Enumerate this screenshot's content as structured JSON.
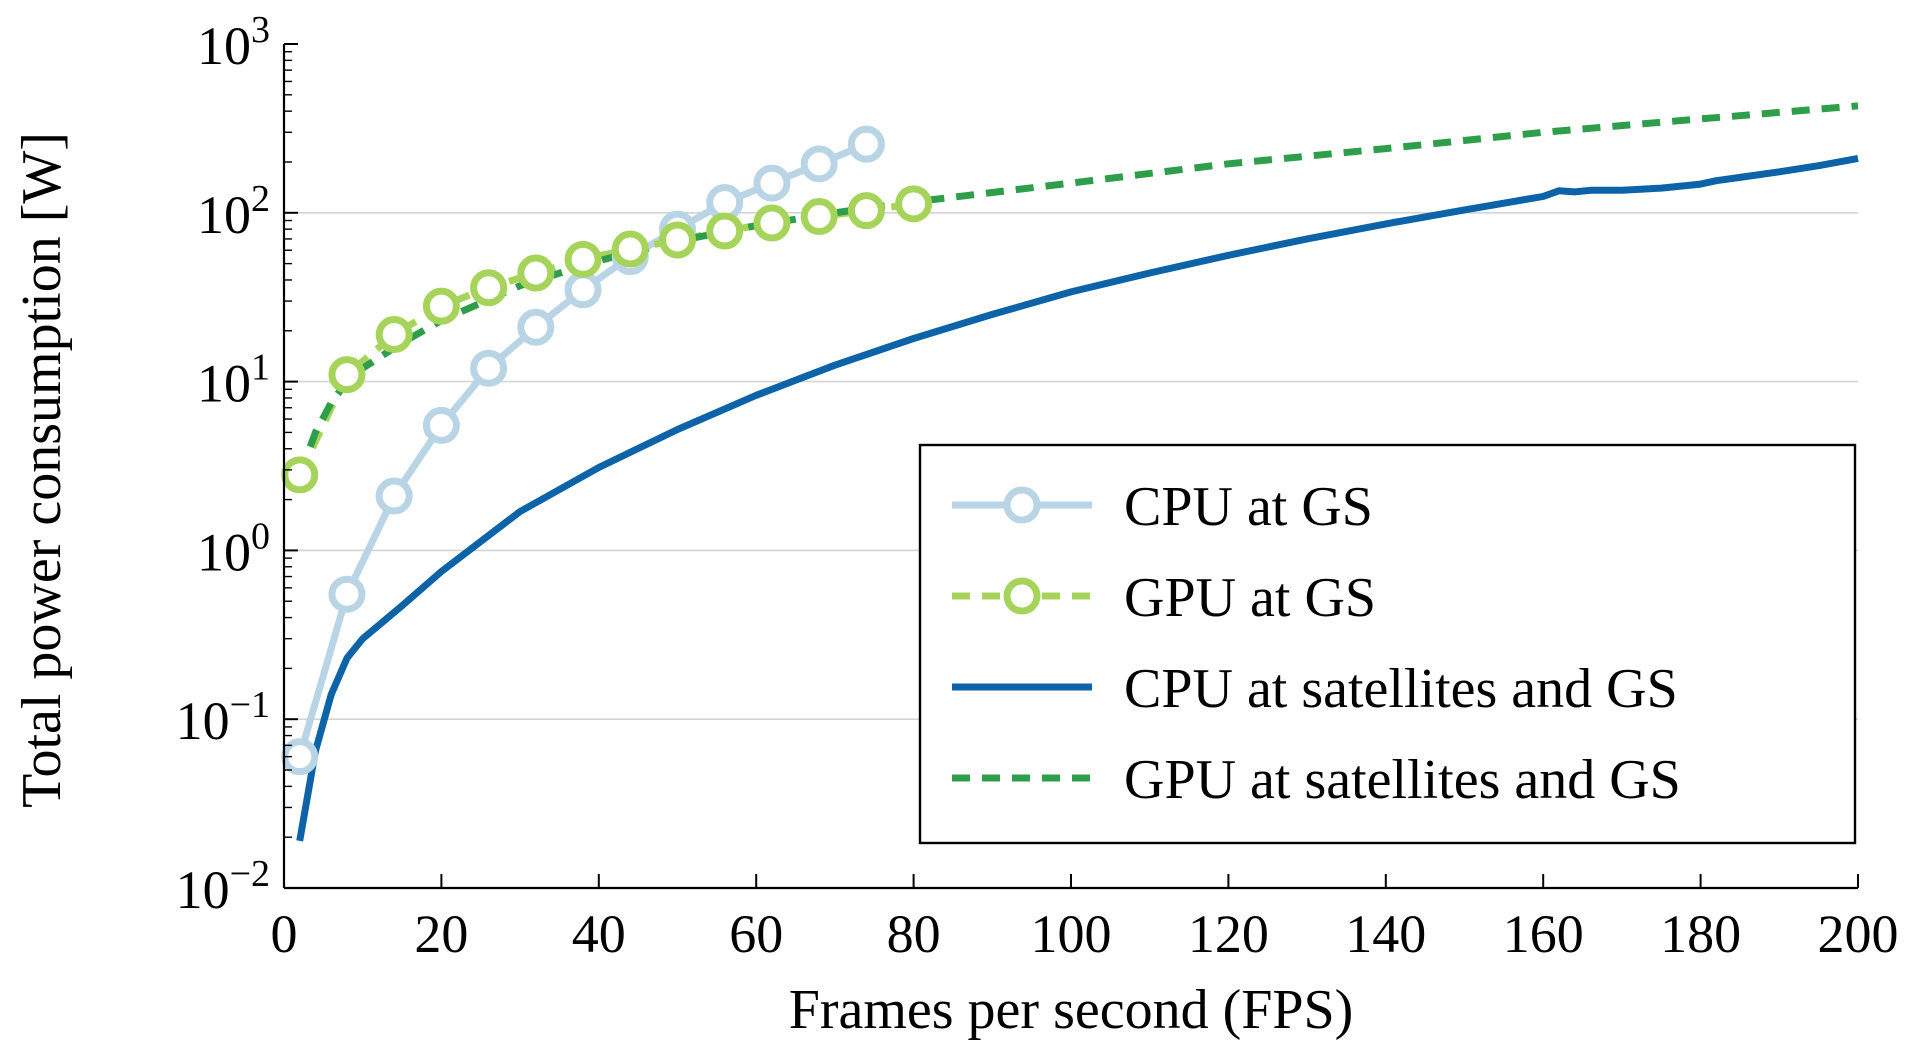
{
  "chart_data": {
    "type": "line",
    "title": "",
    "xlabel": "Frames per second (FPS)",
    "ylabel": "Total power consumption [W]",
    "xlim": [
      0,
      200
    ],
    "ylim": [
      0.01,
      1000
    ],
    "yscale": "log",
    "grid": "y-major",
    "legend_position": "lower-right",
    "x_ticks": [
      0,
      20,
      40,
      60,
      80,
      100,
      120,
      140,
      160,
      180,
      200
    ],
    "x_tick_labels": [
      "0",
      "20",
      "40",
      "60",
      "80",
      "100",
      "120",
      "140",
      "160",
      "180",
      "200"
    ],
    "y_ticks": [
      {
        "value": 0.01,
        "base": "10",
        "exp": "−2"
      },
      {
        "value": 0.1,
        "base": "10",
        "exp": "−1"
      },
      {
        "value": 1,
        "base": "10",
        "exp": "0"
      },
      {
        "value": 10,
        "base": "10",
        "exp": "1"
      },
      {
        "value": 100,
        "base": "10",
        "exp": "2"
      },
      {
        "value": 1000,
        "base": "10",
        "exp": "3"
      }
    ],
    "series": [
      {
        "name": "CPU at GS",
        "color": "#b9d4e5",
        "dash": "solid",
        "marker": "circle",
        "x": [
          2,
          8,
          14,
          20,
          26,
          32,
          38,
          44,
          50,
          56,
          62,
          68,
          74
        ],
        "y": [
          0.06,
          0.55,
          2.1,
          5.5,
          12,
          21,
          35,
          55,
          80,
          115,
          150,
          195,
          255
        ]
      },
      {
        "name": "GPU at GS",
        "color": "#a6d45a",
        "dash": "dashed",
        "marker": "circle",
        "x": [
          2,
          8,
          14,
          20,
          26,
          32,
          38,
          44,
          50,
          56,
          62,
          68,
          74,
          80
        ],
        "y": [
          2.8,
          11,
          19,
          28,
          36,
          44,
          53,
          61,
          69,
          78,
          87,
          95,
          103,
          113
        ]
      },
      {
        "name": "CPU at satellites and GS",
        "color": "#0d63a8",
        "dash": "solid",
        "marker": "none",
        "x": [
          2,
          4,
          6,
          8,
          10,
          15,
          20,
          30,
          40,
          50,
          60,
          70,
          80,
          90,
          100,
          110,
          120,
          130,
          140,
          150,
          160,
          162,
          164,
          166,
          170,
          175,
          180,
          182,
          185,
          190,
          195,
          200
        ],
        "y": [
          0.019,
          0.065,
          0.14,
          0.23,
          0.3,
          0.47,
          0.75,
          1.7,
          3.1,
          5.2,
          8.3,
          12.5,
          18,
          25,
          34,
          44,
          56,
          70,
          86,
          104,
          125,
          135,
          133,
          136,
          136,
          140,
          148,
          155,
          162,
          175,
          190,
          210
        ]
      },
      {
        "name": "GPU at satellites and GS",
        "color": "#2f9e4b",
        "dash": "dashed",
        "marker": "none",
        "x": [
          2,
          4,
          6,
          8,
          10,
          15,
          20,
          30,
          40,
          50,
          60,
          70,
          80,
          100,
          120,
          140,
          160,
          180,
          200
        ],
        "y": [
          2.8,
          5,
          7.5,
          10,
          12,
          17,
          23,
          37,
          52,
          68,
          84,
          100,
          116,
          150,
          195,
          240,
          300,
          360,
          430
        ]
      }
    ]
  }
}
